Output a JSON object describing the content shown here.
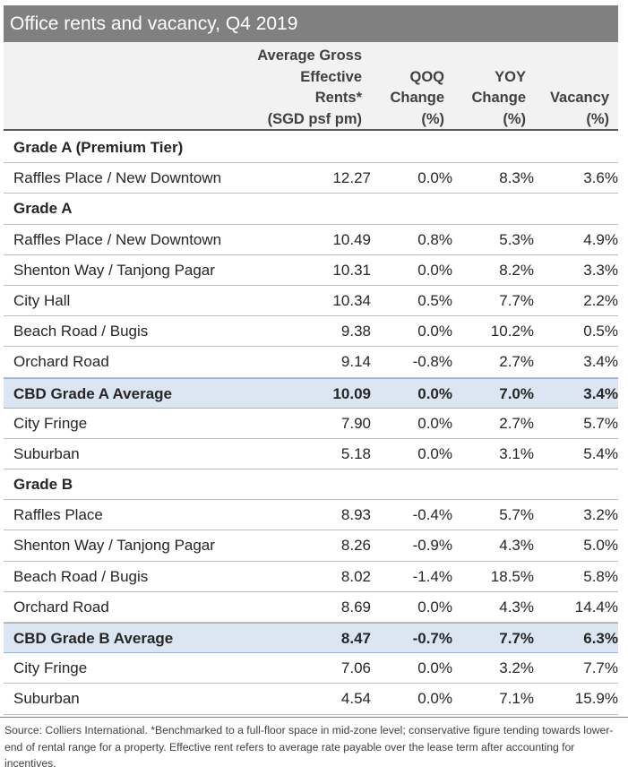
{
  "title": "Office rents and vacancy, Q4 2019",
  "headers": {
    "rent": [
      "Average Gross",
      "Effective",
      "Rents*",
      "(SGD psf pm)"
    ],
    "qoq": [
      "QOQ",
      "Change",
      "(%)"
    ],
    "yoy": [
      "YOY",
      "Change",
      "(%)"
    ],
    "vacancy": [
      "Vacancy",
      "(%)"
    ]
  },
  "rows": [
    {
      "type": "section",
      "name": "Grade A (Premium Tier)"
    },
    {
      "type": "data",
      "name": "Raffles Place / New Downtown",
      "rent": "12.27",
      "qoq": "0.0%",
      "yoy": "8.3%",
      "vacancy": "3.6%"
    },
    {
      "type": "section",
      "name": "Grade A"
    },
    {
      "type": "data",
      "name": "Raffles Place / New Downtown",
      "rent": "10.49",
      "qoq": "0.8%",
      "yoy": "5.3%",
      "vacancy": "4.9%"
    },
    {
      "type": "data",
      "name": "Shenton Way / Tanjong Pagar",
      "rent": "10.31",
      "qoq": "0.0%",
      "yoy": "8.2%",
      "vacancy": "3.3%"
    },
    {
      "type": "data",
      "name": "City Hall",
      "rent": "10.34",
      "qoq": "0.5%",
      "yoy": "7.7%",
      "vacancy": "2.2%"
    },
    {
      "type": "data",
      "name": "Beach Road / Bugis",
      "rent": "9.38",
      "qoq": "0.0%",
      "yoy": "10.2%",
      "vacancy": "0.5%"
    },
    {
      "type": "data",
      "name": "Orchard Road",
      "rent": "9.14",
      "qoq": "-0.8%",
      "yoy": "2.7%",
      "vacancy": "3.4%"
    },
    {
      "type": "avg",
      "name": "CBD Grade A Average",
      "rent": "10.09",
      "qoq": "0.0%",
      "yoy": "7.0%",
      "vacancy": "3.4%"
    },
    {
      "type": "data",
      "name": "City Fringe",
      "rent": "7.90",
      "qoq": "0.0%",
      "yoy": "2.7%",
      "vacancy": "5.7%"
    },
    {
      "type": "data",
      "name": "Suburban",
      "rent": "5.18",
      "qoq": "0.0%",
      "yoy": "3.1%",
      "vacancy": "5.4%"
    },
    {
      "type": "section",
      "name": "Grade B"
    },
    {
      "type": "data",
      "name": "Raffles Place",
      "rent": "8.93",
      "qoq": "-0.4%",
      "yoy": "5.7%",
      "vacancy": "3.2%"
    },
    {
      "type": "data",
      "name": "Shenton Way / Tanjong Pagar",
      "rent": "8.26",
      "qoq": "-0.9%",
      "yoy": "4.3%",
      "vacancy": "5.0%"
    },
    {
      "type": "data",
      "name": "Beach Road / Bugis",
      "rent": "8.02",
      "qoq": "-1.4%",
      "yoy": "18.5%",
      "vacancy": "5.8%"
    },
    {
      "type": "data",
      "name": "Orchard Road",
      "rent": "8.69",
      "qoq": "0.0%",
      "yoy": "4.3%",
      "vacancy": "14.4%"
    },
    {
      "type": "avg",
      "name": "CBD Grade B Average",
      "rent": "8.47",
      "qoq": "-0.7%",
      "yoy": "7.7%",
      "vacancy": "6.3%"
    },
    {
      "type": "data",
      "name": "City Fringe",
      "rent": "7.06",
      "qoq": "0.0%",
      "yoy": "3.2%",
      "vacancy": "7.7%"
    },
    {
      "type": "data",
      "name": "Suburban",
      "rent": "4.54",
      "qoq": "0.0%",
      "yoy": "7.1%",
      "vacancy": "15.9%"
    }
  ],
  "footnote": "Source: Colliers International. *Benchmarked to a full-floor space in mid-zone level; conservative figure tending towards lower-end of rental range for a property. Effective rent refers to average rate payable over the lease term after accounting for incentives."
}
